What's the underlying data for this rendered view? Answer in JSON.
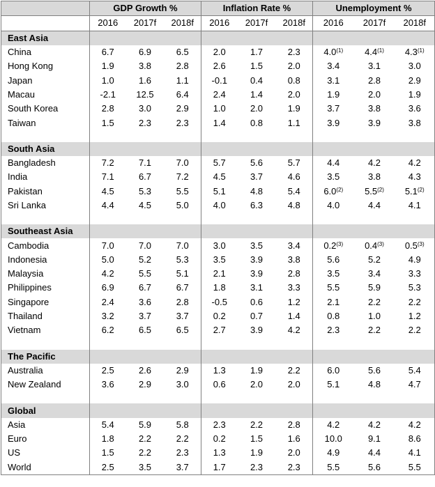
{
  "header": {
    "groups": [
      "GDP Growth %",
      "Inflation Rate %",
      "Unemployment %"
    ],
    "years": [
      "2016",
      "2017f",
      "2018f"
    ]
  },
  "sections": [
    {
      "title": "East Asia",
      "rows": [
        {
          "name": "China",
          "values": [
            "6.7",
            "6.9",
            "6.5",
            "2.0",
            "1.7",
            "2.3",
            "4.0",
            "4.4",
            "4.3"
          ],
          "notes": [
            "",
            "",
            "",
            "",
            "",
            "",
            "(1)",
            "(1)",
            "(1)"
          ]
        },
        {
          "name": "Hong Kong",
          "values": [
            "1.9",
            "3.8",
            "2.8",
            "2.6",
            "1.5",
            "2.0",
            "3.4",
            "3.1",
            "3.0"
          ]
        },
        {
          "name": "Japan",
          "values": [
            "1.0",
            "1.6",
            "1.1",
            "-0.1",
            "0.4",
            "0.8",
            "3.1",
            "2.8",
            "2.9"
          ]
        },
        {
          "name": "Macau",
          "values": [
            "-2.1",
            "12.5",
            "6.4",
            "2.4",
            "1.4",
            "2.0",
            "1.9",
            "2.0",
            "1.9"
          ]
        },
        {
          "name": "South Korea",
          "values": [
            "2.8",
            "3.0",
            "2.9",
            "1.0",
            "2.0",
            "1.9",
            "3.7",
            "3.8",
            "3.6"
          ]
        },
        {
          "name": "Taiwan",
          "values": [
            "1.5",
            "2.3",
            "2.3",
            "1.4",
            "0.8",
            "1.1",
            "3.9",
            "3.9",
            "3.8"
          ]
        }
      ]
    },
    {
      "title": "South Asia",
      "rows": [
        {
          "name": "Bangladesh",
          "values": [
            "7.2",
            "7.1",
            "7.0",
            "5.7",
            "5.6",
            "5.7",
            "4.4",
            "4.2",
            "4.2"
          ]
        },
        {
          "name": "India",
          "values": [
            "7.1",
            "6.7",
            "7.2",
            "4.5",
            "3.7",
            "4.6",
            "3.5",
            "3.8",
            "4.3"
          ]
        },
        {
          "name": "Pakistan",
          "values": [
            "4.5",
            "5.3",
            "5.5",
            "5.1",
            "4.8",
            "5.4",
            "6.0",
            "5.5",
            "5.1"
          ],
          "notes": [
            "",
            "",
            "",
            "",
            "",
            "",
            "(2)",
            "(2)",
            "(2)"
          ]
        },
        {
          "name": "Sri Lanka",
          "values": [
            "4.4",
            "4.5",
            "5.0",
            "4.0",
            "6.3",
            "4.8",
            "4.0",
            "4.4",
            "4.1"
          ]
        }
      ]
    },
    {
      "title": "Southeast Asia",
      "rows": [
        {
          "name": "Cambodia",
          "values": [
            "7.0",
            "7.0",
            "7.0",
            "3.0",
            "3.5",
            "3.4",
            "0.2",
            "0.4",
            "0.5"
          ],
          "notes": [
            "",
            "",
            "",
            "",
            "",
            "",
            "(3)",
            "(3)",
            "(3)"
          ]
        },
        {
          "name": "Indonesia",
          "values": [
            "5.0",
            "5.2",
            "5.3",
            "3.5",
            "3.9",
            "3.8",
            "5.6",
            "5.2",
            "4.9"
          ]
        },
        {
          "name": "Malaysia",
          "values": [
            "4.2",
            "5.5",
            "5.1",
            "2.1",
            "3.9",
            "2.8",
            "3.5",
            "3.4",
            "3.3"
          ]
        },
        {
          "name": "Philippines",
          "values": [
            "6.9",
            "6.7",
            "6.7",
            "1.8",
            "3.1",
            "3.3",
            "5.5",
            "5.9",
            "5.3"
          ]
        },
        {
          "name": "Singapore",
          "values": [
            "2.4",
            "3.6",
            "2.8",
            "-0.5",
            "0.6",
            "1.2",
            "2.1",
            "2.2",
            "2.2"
          ]
        },
        {
          "name": "Thailand",
          "values": [
            "3.2",
            "3.7",
            "3.7",
            "0.2",
            "0.7",
            "1.4",
            "0.8",
            "1.0",
            "1.2"
          ]
        },
        {
          "name": "Vietnam",
          "values": [
            "6.2",
            "6.5",
            "6.5",
            "2.7",
            "3.9",
            "4.2",
            "2.3",
            "2.2",
            "2.2"
          ]
        }
      ]
    },
    {
      "title": "The Pacific",
      "rows": [
        {
          "name": "Australia",
          "values": [
            "2.5",
            "2.6",
            "2.9",
            "1.3",
            "1.9",
            "2.2",
            "6.0",
            "5.6",
            "5.4"
          ]
        },
        {
          "name": "New Zealand",
          "values": [
            "3.6",
            "2.9",
            "3.0",
            "0.6",
            "2.0",
            "2.0",
            "5.1",
            "4.8",
            "4.7"
          ]
        }
      ]
    },
    {
      "title": "Global",
      "rows": [
        {
          "name": "Asia",
          "values": [
            "5.4",
            "5.9",
            "5.8",
            "2.3",
            "2.2",
            "2.8",
            "4.2",
            "4.2",
            "4.2"
          ]
        },
        {
          "name": "Euro",
          "values": [
            "1.8",
            "2.2",
            "2.2",
            "0.2",
            "1.5",
            "1.6",
            "10.0",
            "9.1",
            "8.6"
          ]
        },
        {
          "name": "US",
          "values": [
            "1.5",
            "2.2",
            "2.3",
            "1.3",
            "1.9",
            "2.0",
            "4.9",
            "4.4",
            "4.1"
          ]
        },
        {
          "name": "World",
          "values": [
            "2.5",
            "3.5",
            "3.7",
            "1.7",
            "2.3",
            "2.3",
            "5.5",
            "5.6",
            "5.5"
          ]
        }
      ]
    }
  ]
}
